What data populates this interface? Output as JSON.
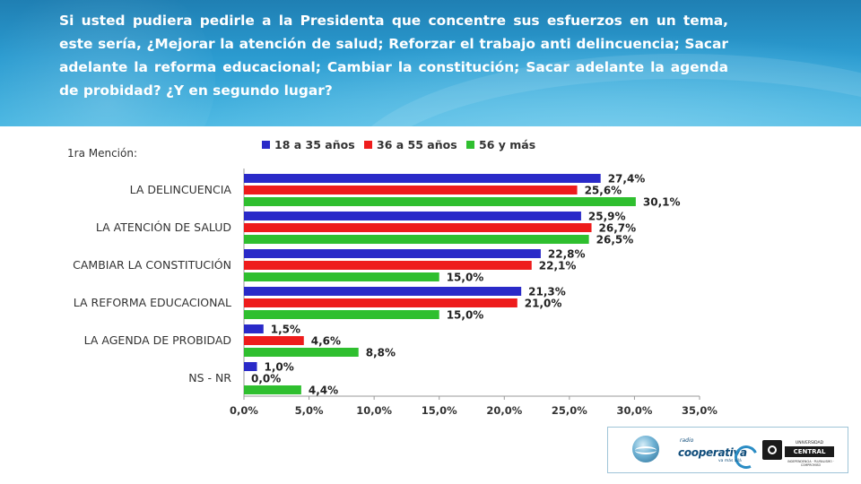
{
  "header": {
    "question": "Si usted pudiera pedirle a la Presidenta que concentre sus esfuerzos en un tema, este sería, ¿Mejorar la atención de salud; Reforzar el trabajo anti delincuencia; Sacar adelante la reforma educacional; Cambiar la constitución; Sacar adelante la agenda de probidad? ¿Y en segundo lugar?"
  },
  "chart_data": {
    "type": "bar",
    "orientation": "horizontal",
    "subtitle": "1ra Mención:",
    "categories": [
      "LA DELINCUENCIA",
      "LA ATENCIÓN DE SALUD",
      "CAMBIAR LA CONSTITUCIÓN",
      "LA REFORMA EDUCACIONAL",
      "LA AGENDA DE PROBIDAD",
      "NS - NR"
    ],
    "series": [
      {
        "name": "18 a 35 años",
        "color": "#2a2ac8",
        "values": [
          27.4,
          25.9,
          22.8,
          21.3,
          1.5,
          1.0
        ],
        "labels": [
          "27,4%",
          "25,9%",
          "22,8%",
          "21,3%",
          "1,5%",
          "1,0%"
        ]
      },
      {
        "name": "36 a 55 años",
        "color": "#ee1c1c",
        "values": [
          25.6,
          26.7,
          22.1,
          21.0,
          4.6,
          0.0
        ],
        "labels": [
          "25,6%",
          "26,7%",
          "22,1%",
          "21,0%",
          "4,6%",
          "0,0%"
        ]
      },
      {
        "name": "56 y más",
        "color": "#2fbf2f",
        "values": [
          30.1,
          26.5,
          15.0,
          15.0,
          8.8,
          4.4
        ],
        "labels": [
          "30,1%",
          "26,5%",
          "15,0%",
          "15,0%",
          "8,8%",
          "4,4%"
        ]
      }
    ],
    "xlim": [
      0,
      35
    ],
    "xticks": [
      0,
      5,
      10,
      15,
      20,
      25,
      30,
      35
    ],
    "xtick_labels": [
      "0,0%",
      "5,0%",
      "10,0%",
      "15,0%",
      "20,0%",
      "25,0%",
      "30,0%",
      "35,0%"
    ],
    "legend_position": "top",
    "grid": false
  },
  "logos": {
    "cooperativa_radio": "radio",
    "cooperativa_name": "cooperativa",
    "cooperativa_tagline": "va más allá",
    "ucentral_top": "UNIVERSIDAD",
    "ucentral_name": "CENTRAL",
    "ucentral_sub": "INDEPENDENCIA · PLURALISMO · COMPROMISO"
  }
}
